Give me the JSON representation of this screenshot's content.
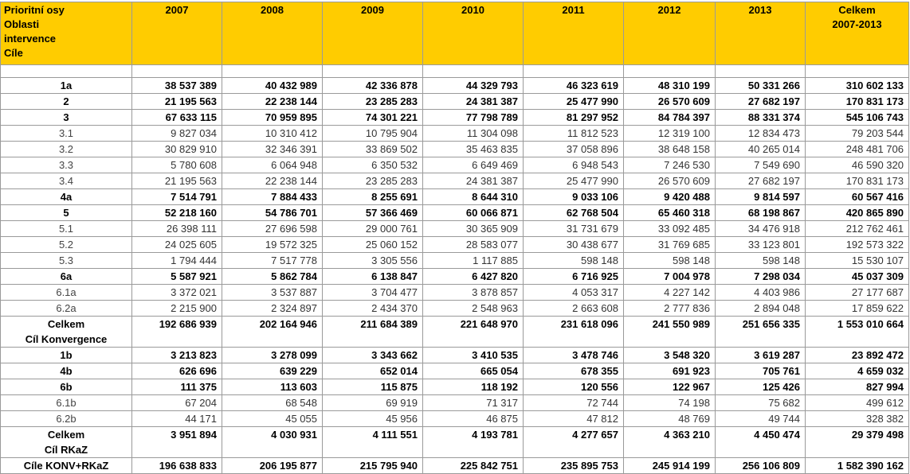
{
  "table": {
    "header": [
      [
        "Prioritní osy",
        "Oblasti",
        "intervence",
        "Cíle"
      ],
      [
        "2007"
      ],
      [
        "2008"
      ],
      [
        "2009"
      ],
      [
        "2010"
      ],
      [
        "2011"
      ],
      [
        "2012"
      ],
      [
        "2013"
      ],
      [
        "Celkem",
        "2007-2013"
      ]
    ],
    "rows": [
      {
        "label": [
          "1a"
        ],
        "bold": true,
        "values": [
          "38 537 389",
          "40 432 989",
          "42 336 878",
          "44 329 793",
          "46 323 619",
          "48 310 199",
          "50 331 266",
          "310 602 133"
        ]
      },
      {
        "label": [
          "2"
        ],
        "bold": true,
        "values": [
          "21 195 563",
          "22 238 144",
          "23 285 283",
          "24 381 387",
          "25 477 990",
          "26 570 609",
          "27 682 197",
          "170 831 173"
        ]
      },
      {
        "label": [
          "3"
        ],
        "bold": true,
        "values": [
          "67 633 115",
          "70 959 895",
          "74 301 221",
          "77 798 789",
          "81 297 952",
          "84 784 397",
          "88 331 374",
          "545 106 743"
        ]
      },
      {
        "label": [
          "3.1"
        ],
        "bold": false,
        "values": [
          "9 827 034",
          "10 310 412",
          "10 795 904",
          "11 304 098",
          "11 812 523",
          "12 319 100",
          "12 834 473",
          "79 203 544"
        ]
      },
      {
        "label": [
          "3.2"
        ],
        "bold": false,
        "values": [
          "30 829 910",
          "32 346 391",
          "33 869 502",
          "35 463 835",
          "37 058 896",
          "38 648 158",
          "40 265 014",
          "248 481 706"
        ]
      },
      {
        "label": [
          "3.3"
        ],
        "bold": false,
        "values": [
          "5 780 608",
          "6 064 948",
          "6 350 532",
          "6 649 469",
          "6 948 543",
          "7 246 530",
          "7 549 690",
          "46 590 320"
        ]
      },
      {
        "label": [
          "3.4"
        ],
        "bold": false,
        "values": [
          "21 195 563",
          "22 238 144",
          "23 285 283",
          "24 381 387",
          "25 477 990",
          "26 570 609",
          "27 682 197",
          "170 831 173"
        ]
      },
      {
        "label": [
          "4a"
        ],
        "bold": true,
        "values": [
          "7 514 791",
          "7 884 433",
          "8 255 691",
          "8 644 310",
          "9 033 106",
          "9 420 488",
          "9 814 597",
          "60 567 416"
        ]
      },
      {
        "label": [
          "5"
        ],
        "bold": true,
        "values": [
          "52 218 160",
          "54 786 701",
          "57 366 469",
          "60 066 871",
          "62 768 504",
          "65 460 318",
          "68 198 867",
          "420 865 890"
        ]
      },
      {
        "label": [
          "5.1"
        ],
        "bold": false,
        "values": [
          "26 398 111",
          "27 696 598",
          "29 000 761",
          "30 365 909",
          "31 731 679",
          "33 092 485",
          "34 476 918",
          "212 762 461"
        ]
      },
      {
        "label": [
          "5.2"
        ],
        "bold": false,
        "values": [
          "24 025 605",
          "19 572 325",
          "25 060 152",
          "28 583 077",
          "30 438 677",
          "31 769 685",
          "33 123 801",
          "192 573 322"
        ]
      },
      {
        "label": [
          "5.3"
        ],
        "bold": false,
        "values": [
          "1 794 444",
          "7 517 778",
          "3 305 556",
          "1 117 885",
          "598 148",
          "598 148",
          "598 148",
          "15 530 107"
        ]
      },
      {
        "label": [
          "6a"
        ],
        "bold": true,
        "values": [
          "5 587 921",
          "5 862 784",
          "6 138 847",
          "6 427 820",
          "6 716 925",
          "7 004 978",
          "7 298 034",
          "45 037 309"
        ]
      },
      {
        "label": [
          "6.1a"
        ],
        "bold": false,
        "values": [
          "3 372 021",
          "3 537 887",
          "3 704 477",
          "3 878 857",
          "4 053 317",
          "4 227 142",
          "4 403 986",
          "27 177 687"
        ]
      },
      {
        "label": [
          "6.2a"
        ],
        "bold": false,
        "values": [
          "2 215 900",
          "2 324 897",
          "2 434 370",
          "2 548 963",
          "2 663 608",
          "2 777 836",
          "2 894 048",
          "17 859 622"
        ]
      },
      {
        "label": [
          "Celkem",
          "Cíl Konvergence"
        ],
        "bold": true,
        "values": [
          "192 686 939",
          "202 164 946",
          "211 684 389",
          "221 648 970",
          "231 618 096",
          "241 550 989",
          "251 656 335",
          "1 553 010 664"
        ]
      },
      {
        "label": [
          "1b"
        ],
        "bold": true,
        "values": [
          "3 213 823",
          "3 278 099",
          "3 343 662",
          "3 410 535",
          "3 478 746",
          "3 548 320",
          "3 619 287",
          "23 892 472"
        ]
      },
      {
        "label": [
          "4b"
        ],
        "bold": true,
        "values": [
          "626 696",
          "639 229",
          "652 014",
          "665 054",
          "678 355",
          "691 923",
          "705 761",
          "4 659 032"
        ]
      },
      {
        "label": [
          "6b"
        ],
        "bold": true,
        "values": [
          "111 375",
          "113 603",
          "115 875",
          "118 192",
          "120 556",
          "122 967",
          "125 426",
          "827 994"
        ]
      },
      {
        "label": [
          "6.1b"
        ],
        "bold": false,
        "values": [
          "67 204",
          "68 548",
          "69 919",
          "71 317",
          "72 744",
          "74 198",
          "75 682",
          "499 612"
        ]
      },
      {
        "label": [
          "6.2b"
        ],
        "bold": false,
        "values": [
          "44 171",
          "45 055",
          "45 956",
          "46 875",
          "47 812",
          "48 769",
          "49 744",
          "328 382"
        ]
      },
      {
        "label": [
          "Celkem",
          "Cíl RKaZ"
        ],
        "bold": true,
        "values": [
          "3 951 894",
          "4 030 931",
          "4 111 551",
          "4 193 781",
          "4 277 657",
          "4 363 210",
          "4 450 474",
          "29 379 498"
        ]
      },
      {
        "label": [
          "Cíle KONV+RKaZ"
        ],
        "bold": true,
        "values": [
          "196 638 833",
          "206 195 877",
          "215 795 940",
          "225 842 751",
          "235 895 753",
          "245 914 199",
          "256 106 809",
          "1 582 390 162"
        ]
      }
    ]
  }
}
